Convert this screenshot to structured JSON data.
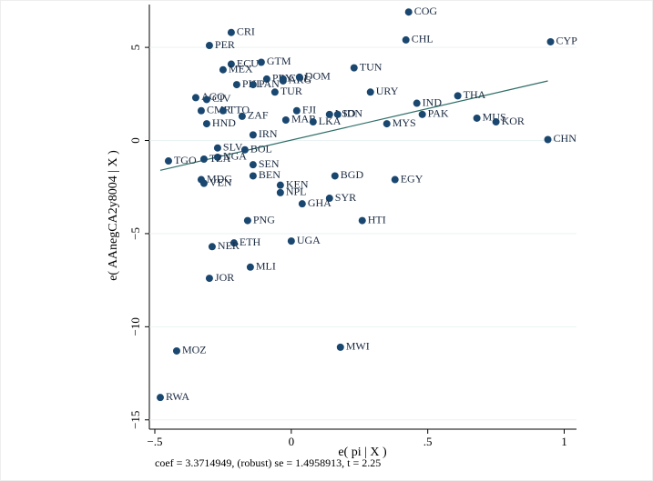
{
  "chart_data": {
    "type": "scatter",
    "x_label": "e( pi | X )",
    "y_label": "e( AAnegCA2y8004 | X )",
    "note": "coef = 3.3714949, (robust) se = 1.4958913, t = 2.25",
    "xlim": [
      -0.52,
      1.045
    ],
    "ylim": [
      -15.5,
      7.3
    ],
    "xticks": [
      {
        "value": -0.5,
        "label": "−.5"
      },
      0,
      {
        "value": 0.5,
        "label": ".5"
      },
      1
    ],
    "yticks": [
      {
        "value": -15,
        "label": "−15"
      },
      {
        "value": -10,
        "label": "−10"
      },
      {
        "value": -5,
        "label": "−5"
      },
      0,
      5
    ],
    "color": "#1a476f",
    "fit_color": "#2d6d66",
    "points": {
      "labels": [
        "COG",
        "CRI",
        "CHL",
        "CYP",
        "PER",
        "ECU",
        "GTM",
        "MEX",
        "TUN",
        "PRY",
        "COL",
        "ARG",
        "DOM",
        "PHL",
        "PAN",
        "TUR",
        "URY",
        "AGO",
        "CIV",
        "IND",
        "THA",
        "CMR",
        "TTO",
        "ZAF",
        "FJI",
        "LSO",
        "IDN",
        "PAK",
        "MAR",
        "LKA",
        "MUS",
        "HND",
        "MYS",
        "KOR",
        "IRN",
        "CHN",
        "SLV",
        "BOL",
        "TGO",
        "NGA",
        "TZA",
        "SEN",
        "BEN",
        "BGD",
        "MDG",
        "VEN",
        "EGY",
        "KEN",
        "NPL",
        "SYR",
        "GHA",
        "PNG",
        "HTI",
        "UGA",
        "ETH",
        "NER",
        "MLI",
        "JOR",
        "MOZ",
        "MWI",
        "RWA"
      ],
      "x": [
        0.43,
        -0.22,
        0.42,
        0.95,
        -0.3,
        -0.22,
        -0.11,
        -0.25,
        0.23,
        -0.09,
        -0.03,
        -0.03,
        0.03,
        -0.2,
        -0.14,
        -0.06,
        0.29,
        -0.35,
        -0.31,
        0.46,
        0.61,
        -0.33,
        -0.25,
        -0.18,
        0.02,
        0.14,
        0.17,
        0.48,
        -0.02,
        0.08,
        0.68,
        -0.31,
        0.35,
        0.75,
        -0.14,
        0.94,
        -0.27,
        -0.17,
        -0.45,
        -0.27,
        -0.32,
        -0.14,
        -0.14,
        0.16,
        -0.33,
        -0.32,
        0.38,
        -0.04,
        -0.04,
        0.14,
        0.04,
        -0.16,
        0.26,
        0,
        -0.21,
        -0.29,
        -0.15,
        -0.3,
        -0.42,
        0.18,
        -0.48
      ],
      "y": [
        6.9,
        5.8,
        5.4,
        5.3,
        5.1,
        4.1,
        4.2,
        3.8,
        3.9,
        3.3,
        3.3,
        3.2,
        3.4,
        3.0,
        3.0,
        2.6,
        2.6,
        2.3,
        2.2,
        2.0,
        2.4,
        1.6,
        1.6,
        1.3,
        1.6,
        1.4,
        1.4,
        1.4,
        1.1,
        1.0,
        1.2,
        0.9,
        0.9,
        1.0,
        0.3,
        0.05,
        -0.4,
        -0.5,
        -1.1,
        -0.9,
        -1.0,
        -1.3,
        -1.9,
        -1.9,
        -2.1,
        -2.3,
        -2.1,
        -2.4,
        -2.8,
        -3.1,
        -3.4,
        -4.3,
        -4.3,
        -5.4,
        -5.5,
        -5.7,
        -6.8,
        -7.4,
        -11.3,
        -11.1,
        -13.8
      ]
    },
    "fit_line": {
      "x": [
        -0.48,
        0.94
      ],
      "y": [
        -1.6,
        3.2
      ]
    }
  }
}
